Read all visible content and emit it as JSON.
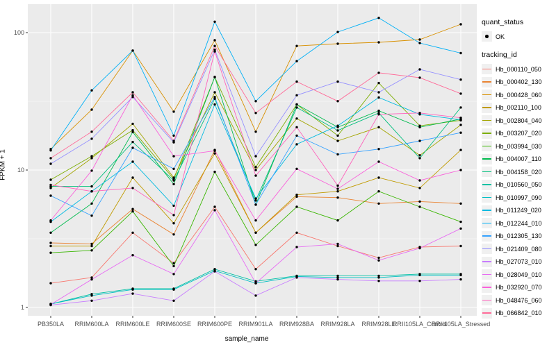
{
  "axes": {
    "x_title": "sample_name",
    "y_title": "FPKM + 1",
    "y_tick_labels": [
      "100",
      "10",
      "1"
    ]
  },
  "legend": {
    "quant_status_title": "quant_status",
    "quant_status_items": [
      {
        "label": "OK",
        "marker": "black-point"
      }
    ],
    "tracking_id_title": "tracking_id"
  },
  "chart_data": {
    "type": "line",
    "title": "",
    "xlabel": "sample_name",
    "ylabel": "FPKM + 1",
    "y_scale": "log10",
    "ylim": [
      1,
      160
    ],
    "y_ticks": [
      1,
      10,
      100
    ],
    "y_minor_ticks": [
      3.1623,
      31.623
    ],
    "grid": true,
    "legend_position": "right",
    "panel_bg": "#EBEBEB",
    "grid_color": "#FFFFFF",
    "point_color": "#000000",
    "categories": [
      "PB350LA",
      "RRIM600LA",
      "RRIM600LE",
      "RRIM600SE",
      "RRIM600PE",
      "RRIM901LA",
      "RRIM928BA",
      "RRIM928LA",
      "RRIM928LE",
      "RRII105LA_Control",
      "RRII105LA_Stressed"
    ],
    "quant_status_all_points": "OK",
    "series": [
      {
        "name": "Hb_000110_050",
        "color": "#F8766D",
        "values": [
          1.5,
          1.65,
          3.5,
          2.1,
          5.4,
          1.9,
          3.5,
          2.8,
          2.3,
          2.75,
          2.8
        ]
      },
      {
        "name": "Hb_000402_130",
        "color": "#EA8331",
        "values": [
          2.95,
          2.9,
          5.2,
          3.4,
          14,
          3.5,
          6.4,
          6.3,
          5.7,
          5.9,
          5.7
        ]
      },
      {
        "name": "Hb_000428_060",
        "color": "#D89000",
        "values": [
          14.2,
          27.5,
          74,
          26.6,
          88,
          19,
          80,
          83,
          85,
          89,
          115
        ]
      },
      {
        "name": "Hb_002110_100",
        "color": "#C09B00",
        "values": [
          2.8,
          2.8,
          8.8,
          4.1,
          13.2,
          3.5,
          6.6,
          7.0,
          8.8,
          7.4,
          14
        ]
      },
      {
        "name": "Hb_002804_040",
        "color": "#A3A500",
        "values": [
          7.4,
          12.2,
          21.7,
          8.8,
          36.8,
          10,
          23.7,
          16.3,
          20.5,
          12.8,
          21.3
        ]
      },
      {
        "name": "Hb_003207_020",
        "color": "#7CAE00",
        "values": [
          8.5,
          12.6,
          19.5,
          8.6,
          47.5,
          10.5,
          30,
          17.8,
          43,
          21,
          23
        ]
      },
      {
        "name": "Hb_003994_030",
        "color": "#39B600",
        "values": [
          2.5,
          2.6,
          5.0,
          2.0,
          9.7,
          2.85,
          5.4,
          4.3,
          7.0,
          5.4,
          4.2
        ]
      },
      {
        "name": "Hb_004007_110",
        "color": "#00BB4E",
        "values": [
          3.5,
          5.7,
          18.9,
          7.9,
          47.5,
          5.6,
          30,
          20.5,
          27,
          20.5,
          23.5
        ]
      },
      {
        "name": "Hb_004158_020",
        "color": "#00BF7D",
        "values": [
          7.6,
          7.6,
          16,
          8.4,
          33,
          6.0,
          28.5,
          19.4,
          26,
          12.2,
          28.5
        ]
      },
      {
        "name": "Hb_010560_050",
        "color": "#00C1A3",
        "values": [
          1.06,
          1.25,
          1.37,
          1.37,
          1.9,
          1.55,
          1.7,
          1.7,
          1.7,
          1.75,
          1.75
        ]
      },
      {
        "name": "Hb_010997_090",
        "color": "#00BFC4",
        "values": [
          1.06,
          1.22,
          1.35,
          1.35,
          1.85,
          1.5,
          1.68,
          1.65,
          1.65,
          1.72,
          1.72
        ]
      },
      {
        "name": "Hb_011249_020",
        "color": "#00BAE0",
        "values": [
          4.2,
          7.0,
          11.5,
          5.5,
          30,
          6.2,
          15.4,
          21,
          33.7,
          25.4,
          23.2
        ]
      },
      {
        "name": "Hb_012244_010",
        "color": "#00B0F6",
        "values": [
          13.9,
          38,
          74,
          17.8,
          120,
          31.7,
          62,
          101,
          128,
          84,
          71
        ]
      },
      {
        "name": "Hb_012305_130",
        "color": "#35A2FF",
        "values": [
          6.5,
          4.65,
          14.5,
          10.2,
          34,
          5.6,
          17.8,
          13,
          14.2,
          16.3,
          18.7
        ]
      },
      {
        "name": "Hb_021409_080",
        "color": "#9590FF",
        "values": [
          11.1,
          16.9,
          34,
          15.9,
          75,
          12.6,
          35,
          44,
          36.8,
          54,
          45.5
        ]
      },
      {
        "name": "Hb_027073_010",
        "color": "#C77CFF",
        "values": [
          1.04,
          1.12,
          1.26,
          1.12,
          1.83,
          1.22,
          1.65,
          1.6,
          1.56,
          1.56,
          1.6
        ]
      },
      {
        "name": "Hb_028049_010",
        "color": "#E76BF3",
        "values": [
          1.05,
          1.6,
          2.4,
          1.75,
          5.1,
          1.5,
          2.75,
          2.9,
          2.2,
          2.7,
          3.75
        ]
      },
      {
        "name": "Hb_032920_070",
        "color": "#FA62DB",
        "values": [
          4.3,
          9.9,
          35,
          12.6,
          13.8,
          4.3,
          10.2,
          7.3,
          11.5,
          8.4,
          10
        ]
      },
      {
        "name": "Hb_048476_060",
        "color": "#FF62BC",
        "values": [
          7.8,
          7.0,
          7.4,
          4.7,
          73,
          9.1,
          20.5,
          7.7,
          25.4,
          26,
          24
        ]
      },
      {
        "name": "Hb_066842_010",
        "color": "#FF6A98",
        "values": [
          12.2,
          19,
          36.8,
          16.3,
          80,
          26,
          44,
          31.7,
          51,
          47,
          36
        ]
      }
    ]
  }
}
